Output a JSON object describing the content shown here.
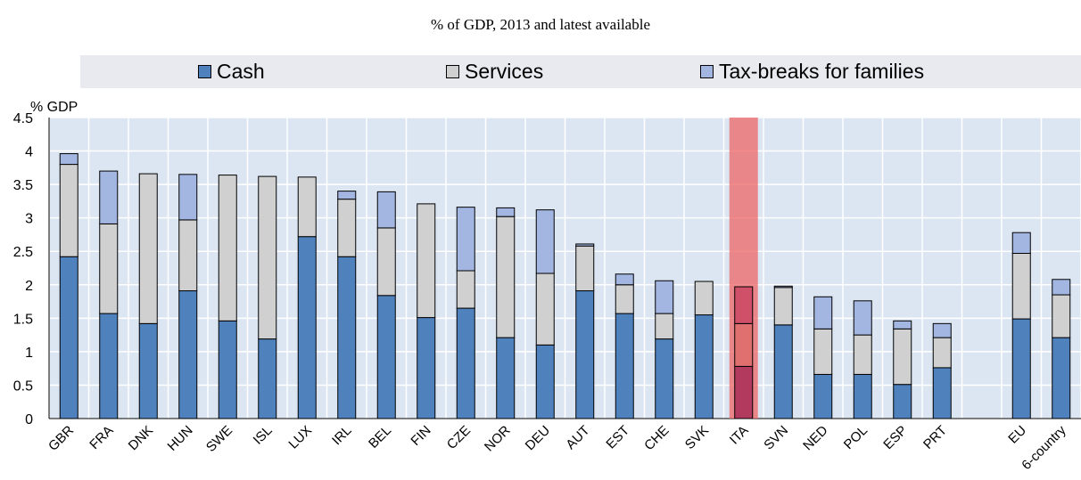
{
  "subtitle": "% of GDP, 2013 and latest available",
  "chart_data": {
    "type": "bar",
    "stacked": true,
    "ylabel": "% GDP",
    "ylim": [
      0,
      4.5
    ],
    "yticks": [
      "0",
      "0.5",
      "1",
      "1.5",
      "2",
      "2.5",
      "3",
      "3.5",
      "4",
      "4.5"
    ],
    "grid": true,
    "legend_position": "top",
    "categories": [
      "GBR",
      "FRA",
      "DNK",
      "HUN",
      "SWE",
      "ISL",
      "LUX",
      "IRL",
      "BEL",
      "FIN",
      "CZE",
      "NOR",
      "DEU",
      "AUT",
      "EST",
      "CHE",
      "SVK",
      "ITA",
      "SVN",
      "NED",
      "POL",
      "ESP",
      "PRT",
      "",
      "EU",
      "6-country"
    ],
    "highlight": "ITA",
    "series": [
      {
        "name": "Cash",
        "color": "#4f81bd",
        "values": [
          2.42,
          1.57,
          1.42,
          1.91,
          1.46,
          1.19,
          2.72,
          2.42,
          1.84,
          1.51,
          1.65,
          1.21,
          1.1,
          1.91,
          1.57,
          1.19,
          1.55,
          0.78,
          1.4,
          0.66,
          0.66,
          0.51,
          0.76,
          null,
          1.49,
          1.21
        ]
      },
      {
        "name": "Services",
        "color": "#d0d0d0",
        "values": [
          1.38,
          1.34,
          2.24,
          1.06,
          2.18,
          2.43,
          0.89,
          0.86,
          1.01,
          1.7,
          0.56,
          1.81,
          1.07,
          0.67,
          0.43,
          0.38,
          0.5,
          0.64,
          0.56,
          0.68,
          0.59,
          0.83,
          0.45,
          null,
          0.98,
          0.64
        ]
      },
      {
        "name": "Tax-breaks for families",
        "color": "#a3b6e1",
        "values": [
          0.16,
          0.79,
          0.0,
          0.68,
          0.0,
          0.0,
          0.0,
          0.12,
          0.54,
          0.0,
          0.95,
          0.13,
          0.95,
          0.03,
          0.16,
          0.49,
          0.0,
          0.55,
          0.02,
          0.48,
          0.51,
          0.12,
          0.21,
          null,
          0.31,
          0.23
        ]
      }
    ]
  }
}
